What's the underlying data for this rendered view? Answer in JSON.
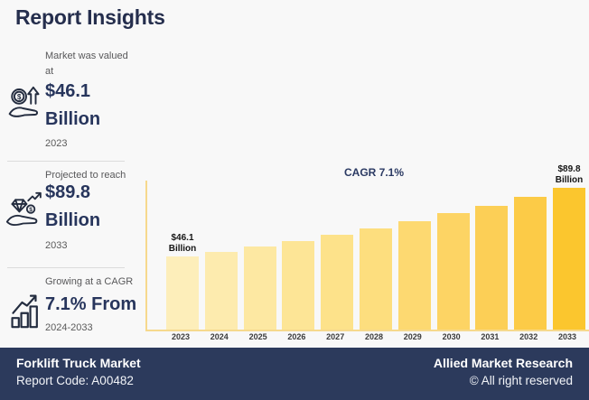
{
  "page": {
    "title": "Report Insights",
    "background": "#f8f8f8",
    "accent_navy": "#27355c",
    "accent_yellow": "#fbc733"
  },
  "stats": [
    {
      "icon": "hand-coin-arrow-icon",
      "label": "Market was valued at",
      "value_line1": "$46.1",
      "value_line2": "Billion",
      "period": "2023"
    },
    {
      "icon": "hand-diamond-icon",
      "label": "Projected to reach",
      "value_line1": "$89.8",
      "value_line2": "Billion",
      "period": "2033"
    },
    {
      "icon": "growth-bars-icon",
      "label": "Growing at a CAGR",
      "value_line1": "7.1% From",
      "value_line2": "",
      "period": "2024-2033"
    }
  ],
  "chart_data": {
    "type": "bar",
    "title": "CAGR 7.1%",
    "categories": [
      "2023",
      "2024",
      "2025",
      "2026",
      "2027",
      "2028",
      "2029",
      "2030",
      "2031",
      "2032",
      "2033"
    ],
    "values": [
      46.1,
      49.3,
      52.7,
      56.3,
      60.2,
      64.3,
      68.8,
      73.5,
      78.6,
      84.0,
      89.8
    ],
    "bar_colors": [
      "#fdeeba",
      "#fdebae",
      "#fde8a2",
      "#fde596",
      "#fde28a",
      "#fdde7e",
      "#fdd971",
      "#fdd464",
      "#fccf56",
      "#fccb47",
      "#fbc62e"
    ],
    "value_labels": [
      {
        "index": 0,
        "lines": [
          "$46.1",
          "Billion"
        ]
      },
      {
        "index": 10,
        "lines": [
          "$89.8",
          "Billion"
        ]
      }
    ],
    "ylim": [
      0,
      94
    ],
    "xlabel": "",
    "ylabel": "",
    "grid": false,
    "legend": false,
    "axis_color": "#f6d98d"
  },
  "footer": {
    "left_title": "Forklift Truck Market",
    "left_subtitle": "Report Code: A00482",
    "right_title": "Allied Market Research",
    "right_subtitle": "© All right reserved"
  }
}
